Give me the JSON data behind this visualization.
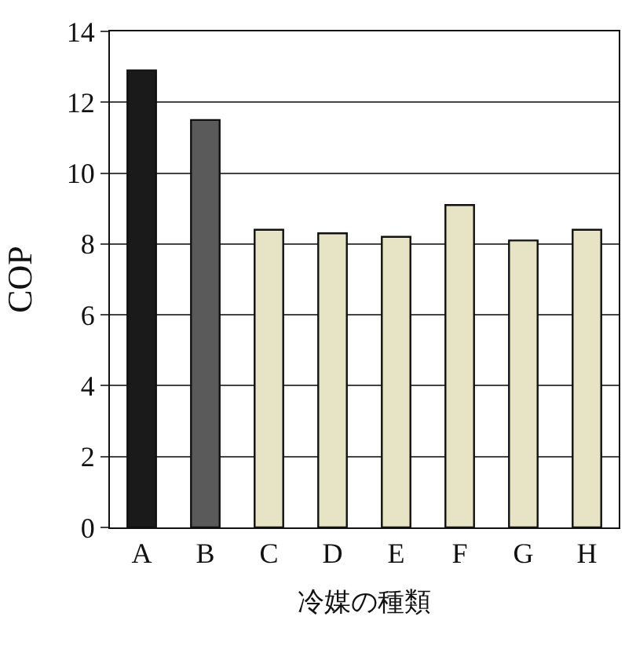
{
  "chart_data": {
    "type": "bar",
    "xlabel": "冷媒の種類",
    "ylabel": "COP",
    "categories": [
      "A",
      "B",
      "C",
      "D",
      "E",
      "F",
      "G",
      "H"
    ],
    "values": [
      12.9,
      11.5,
      8.4,
      8.3,
      8.2,
      9.1,
      8.1,
      8.4
    ],
    "colors": [
      "#1a1a1a",
      "#5a5a5a",
      "#e6e4c4",
      "#e6e4c4",
      "#e6e4c4",
      "#e6e4c4",
      "#e6e4c4",
      "#e6e4c4"
    ],
    "ylim": [
      0,
      14
    ],
    "yticks": [
      0,
      2,
      4,
      6,
      8,
      10,
      12,
      14
    ],
    "grid": "y",
    "legend": false
  }
}
